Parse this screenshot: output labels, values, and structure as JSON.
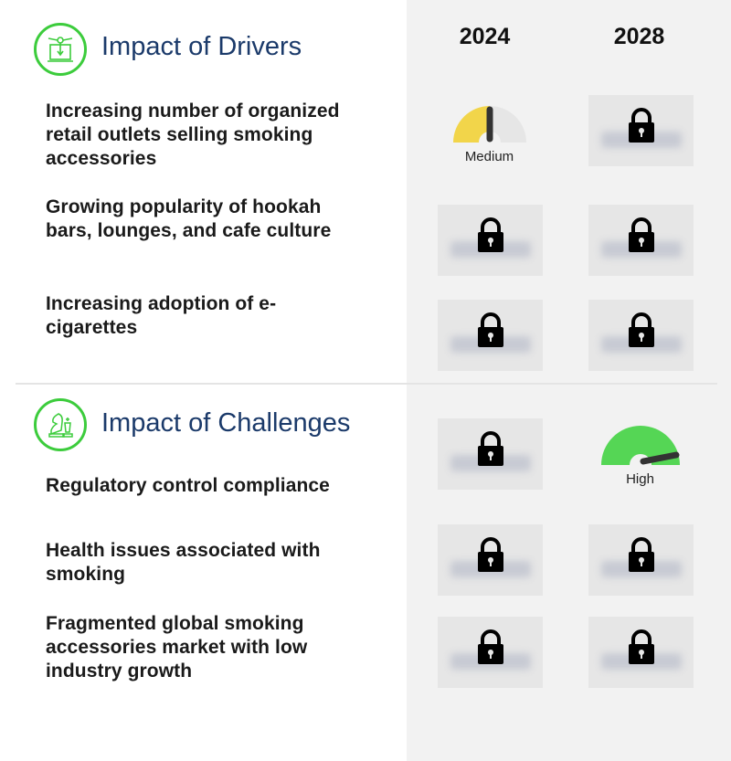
{
  "years": [
    "2024",
    "2028"
  ],
  "drivers": {
    "title": "Impact of Drivers",
    "icon": "machine-icon",
    "items": [
      {
        "text": "Increasing number of organized retail outlets selling smoking accessories",
        "impact_2024": "Medium",
        "impact_2028": "locked"
      },
      {
        "text": "Growing popularity of hookah bars, lounges, and cafe culture",
        "impact_2024": "locked",
        "impact_2028": "locked"
      },
      {
        "text": "Increasing adoption of e-cigarettes",
        "impact_2024": "locked",
        "impact_2028": "locked"
      }
    ]
  },
  "challenges": {
    "title": "Impact of Challenges",
    "icon": "chess-icon",
    "items": [
      {
        "text": "Regulatory control compliance",
        "impact_2024": "locked",
        "impact_2028": "High"
      },
      {
        "text": "Health issues associated with smoking",
        "impact_2024": "locked",
        "impact_2028": "locked"
      },
      {
        "text": "Fragmented global smoking accessories market with low industry growth",
        "impact_2024": "locked",
        "impact_2028": "locked"
      }
    ]
  },
  "colors": {
    "medium": "#f2d54a",
    "high": "#55d655",
    "accent": "#3ccc3c",
    "title": "#1b3a6a"
  }
}
